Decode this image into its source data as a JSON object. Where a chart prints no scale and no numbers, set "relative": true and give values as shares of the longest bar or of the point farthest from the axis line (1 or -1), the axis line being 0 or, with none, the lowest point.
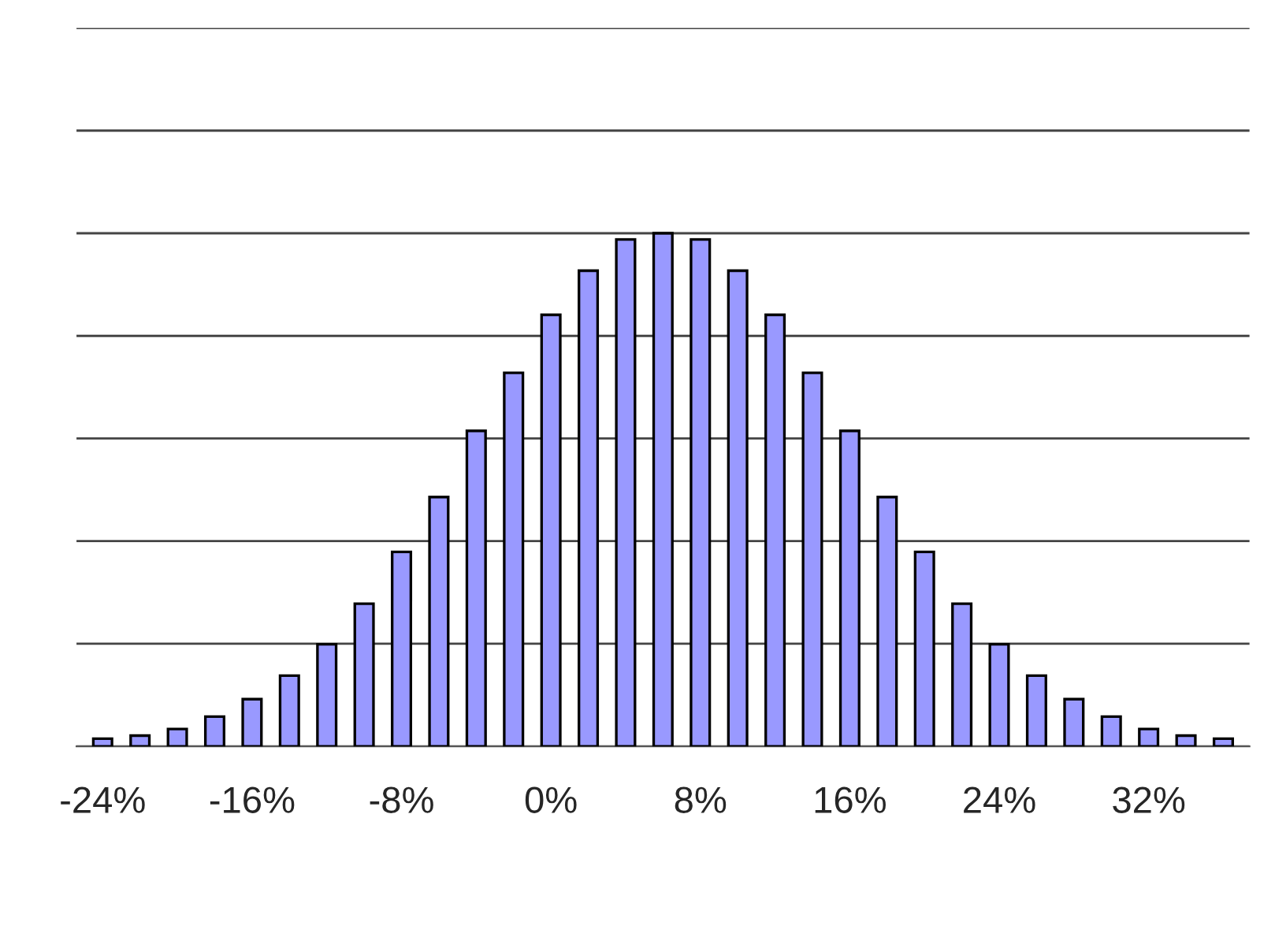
{
  "chart_data": {
    "type": "bar",
    "relative": true,
    "grid": "y",
    "color": "#9999ff",
    "categories": [
      "-24%",
      null,
      null,
      null,
      "-16%",
      null,
      null,
      null,
      "-8%",
      null,
      null,
      null,
      "0%",
      null,
      null,
      null,
      "8%",
      null,
      null,
      null,
      "16%",
      null,
      null,
      null,
      "24%",
      null,
      null,
      null,
      "32%",
      null,
      null
    ],
    "values": [
      0.015,
      0.021,
      0.034,
      0.058,
      0.092,
      0.138,
      0.199,
      0.278,
      0.379,
      0.486,
      0.615,
      0.728,
      0.841,
      0.927,
      0.988,
      1,
      0.988,
      0.927,
      0.841,
      0.728,
      0.615,
      0.486,
      0.379,
      0.278,
      0.199,
      0.138,
      0.092,
      0.058,
      0.034,
      0.021,
      0.015
    ]
  }
}
